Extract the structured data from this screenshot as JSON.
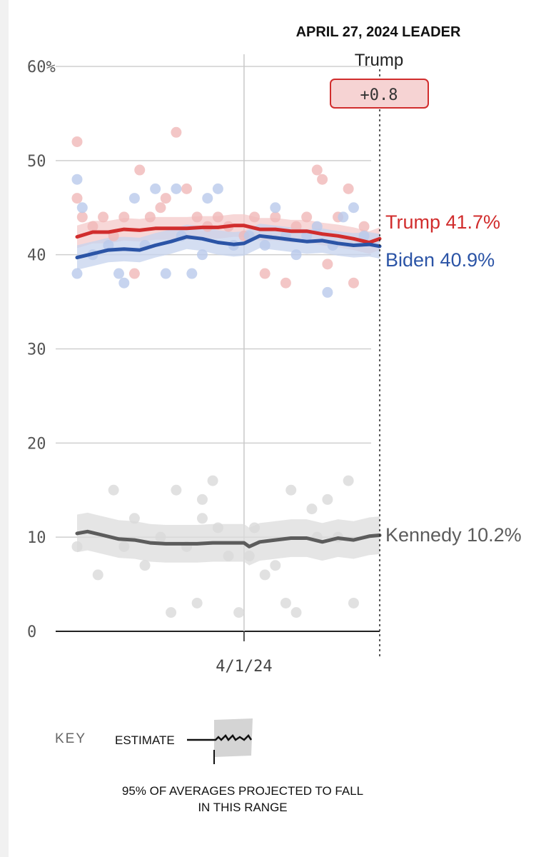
{
  "chart_data": {
    "type": "line",
    "header": "APRIL 27, 2024 LEADER",
    "leader": {
      "name": "Trump",
      "margin": "+0.8"
    },
    "y_ticks": [
      {
        "value": 60,
        "label": "60%"
      },
      {
        "value": 50,
        "label": "50"
      },
      {
        "value": 40,
        "label": "40"
      },
      {
        "value": 30,
        "label": "30"
      },
      {
        "value": 20,
        "label": "20"
      },
      {
        "value": 10,
        "label": "10"
      },
      {
        "value": 0,
        "label": "0"
      }
    ],
    "ylim": [
      0,
      60
    ],
    "x_ticks": [
      {
        "date": "2024-04-01",
        "label": "4/1/24"
      }
    ],
    "xlim": [
      "2024-02-29",
      "2024-04-27"
    ],
    "grid": true,
    "series": [
      {
        "name": "Trump",
        "end_label": "Trump 41.7%",
        "color": "#d12d2d",
        "x": [
          "2024-02-29",
          "2024-03-03",
          "2024-03-06",
          "2024-03-09",
          "2024-03-12",
          "2024-03-15",
          "2024-03-18",
          "2024-03-21",
          "2024-03-24",
          "2024-03-27",
          "2024-03-30",
          "2024-04-01",
          "2024-04-04",
          "2024-04-07",
          "2024-04-10",
          "2024-04-13",
          "2024-04-16",
          "2024-04-19",
          "2024-04-22",
          "2024-04-25",
          "2024-04-27"
        ],
        "y": [
          41.9,
          42.4,
          42.4,
          42.7,
          42.6,
          42.8,
          42.8,
          42.8,
          42.9,
          42.9,
          43.1,
          43.1,
          42.7,
          42.7,
          42.5,
          42.5,
          42.2,
          42.0,
          41.7,
          41.3,
          41.7
        ],
        "band": 1.2,
        "polls": [
          {
            "x": "2024-02-29",
            "y": 52
          },
          {
            "x": "2024-02-29",
            "y": 46
          },
          {
            "x": "2024-03-01",
            "y": 44
          },
          {
            "x": "2024-03-03",
            "y": 43
          },
          {
            "x": "2024-03-05",
            "y": 44
          },
          {
            "x": "2024-03-07",
            "y": 42
          },
          {
            "x": "2024-03-09",
            "y": 44
          },
          {
            "x": "2024-03-11",
            "y": 38
          },
          {
            "x": "2024-03-12",
            "y": 49
          },
          {
            "x": "2024-03-14",
            "y": 44
          },
          {
            "x": "2024-03-16",
            "y": 45
          },
          {
            "x": "2024-03-17",
            "y": 46
          },
          {
            "x": "2024-03-19",
            "y": 53
          },
          {
            "x": "2024-03-21",
            "y": 47
          },
          {
            "x": "2024-03-23",
            "y": 44
          },
          {
            "x": "2024-03-25",
            "y": 43
          },
          {
            "x": "2024-03-27",
            "y": 44
          },
          {
            "x": "2024-03-29",
            "y": 43
          },
          {
            "x": "2024-04-01",
            "y": 42
          },
          {
            "x": "2024-04-03",
            "y": 44
          },
          {
            "x": "2024-04-05",
            "y": 38
          },
          {
            "x": "2024-04-07",
            "y": 44
          },
          {
            "x": "2024-04-09",
            "y": 37
          },
          {
            "x": "2024-04-11",
            "y": 43
          },
          {
            "x": "2024-04-13",
            "y": 44
          },
          {
            "x": "2024-04-15",
            "y": 49
          },
          {
            "x": "2024-04-16",
            "y": 48
          },
          {
            "x": "2024-04-17",
            "y": 39
          },
          {
            "x": "2024-04-19",
            "y": 44
          },
          {
            "x": "2024-04-21",
            "y": 47
          },
          {
            "x": "2024-04-22",
            "y": 37
          },
          {
            "x": "2024-04-24",
            "y": 43
          }
        ]
      },
      {
        "name": "Biden",
        "end_label": "Biden 40.9%",
        "color": "#2b54a6",
        "x": [
          "2024-02-29",
          "2024-03-03",
          "2024-03-06",
          "2024-03-09",
          "2024-03-12",
          "2024-03-15",
          "2024-03-18",
          "2024-03-21",
          "2024-03-24",
          "2024-03-27",
          "2024-03-30",
          "2024-04-01",
          "2024-04-04",
          "2024-04-07",
          "2024-04-10",
          "2024-04-13",
          "2024-04-16",
          "2024-04-19",
          "2024-04-22",
          "2024-04-25",
          "2024-04-27"
        ],
        "y": [
          39.7,
          40.1,
          40.5,
          40.6,
          40.5,
          41.0,
          41.4,
          41.9,
          41.7,
          41.3,
          41.1,
          41.2,
          42.0,
          41.8,
          41.6,
          41.4,
          41.5,
          41.2,
          41.0,
          41.1,
          40.9
        ],
        "band": 1.3,
        "polls": [
          {
            "x": "2024-02-29",
            "y": 48
          },
          {
            "x": "2024-02-29",
            "y": 38
          },
          {
            "x": "2024-03-01",
            "y": 45
          },
          {
            "x": "2024-03-03",
            "y": 40
          },
          {
            "x": "2024-03-06",
            "y": 41
          },
          {
            "x": "2024-03-08",
            "y": 38
          },
          {
            "x": "2024-03-09",
            "y": 37
          },
          {
            "x": "2024-03-11",
            "y": 46
          },
          {
            "x": "2024-03-13",
            "y": 41
          },
          {
            "x": "2024-03-15",
            "y": 47
          },
          {
            "x": "2024-03-17",
            "y": 38
          },
          {
            "x": "2024-03-19",
            "y": 47
          },
          {
            "x": "2024-03-20",
            "y": 42
          },
          {
            "x": "2024-03-22",
            "y": 38
          },
          {
            "x": "2024-03-24",
            "y": 40
          },
          {
            "x": "2024-03-25",
            "y": 46
          },
          {
            "x": "2024-03-27",
            "y": 47
          },
          {
            "x": "2024-03-30",
            "y": 41
          },
          {
            "x": "2024-04-02",
            "y": 42
          },
          {
            "x": "2024-04-05",
            "y": 41
          },
          {
            "x": "2024-04-07",
            "y": 45
          },
          {
            "x": "2024-04-09",
            "y": 42
          },
          {
            "x": "2024-04-11",
            "y": 40
          },
          {
            "x": "2024-04-13",
            "y": 42
          },
          {
            "x": "2024-04-15",
            "y": 43
          },
          {
            "x": "2024-04-17",
            "y": 36
          },
          {
            "x": "2024-04-18",
            "y": 41
          },
          {
            "x": "2024-04-20",
            "y": 44
          },
          {
            "x": "2024-04-22",
            "y": 45
          },
          {
            "x": "2024-04-24",
            "y": 42
          }
        ]
      },
      {
        "name": "Kennedy",
        "end_label": "Kennedy 10.2%",
        "color": "#5c5c5c",
        "x": [
          "2024-02-29",
          "2024-03-02",
          "2024-03-05",
          "2024-03-08",
          "2024-03-11",
          "2024-03-14",
          "2024-03-17",
          "2024-03-20",
          "2024-03-23",
          "2024-03-26",
          "2024-03-29",
          "2024-04-01",
          "2024-04-02",
          "2024-04-04",
          "2024-04-07",
          "2024-04-10",
          "2024-04-13",
          "2024-04-16",
          "2024-04-19",
          "2024-04-22",
          "2024-04-25",
          "2024-04-27"
        ],
        "y": [
          10.4,
          10.6,
          10.2,
          9.8,
          9.7,
          9.4,
          9.3,
          9.3,
          9.3,
          9.4,
          9.4,
          9.4,
          9.0,
          9.5,
          9.7,
          9.9,
          9.9,
          9.5,
          9.9,
          9.7,
          10.1,
          10.2
        ],
        "band": 2.0,
        "polls": [
          {
            "x": "2024-02-29",
            "y": 9
          },
          {
            "x": "2024-03-04",
            "y": 6
          },
          {
            "x": "2024-03-07",
            "y": 15
          },
          {
            "x": "2024-03-09",
            "y": 9
          },
          {
            "x": "2024-03-11",
            "y": 12
          },
          {
            "x": "2024-03-13",
            "y": 7
          },
          {
            "x": "2024-03-16",
            "y": 10
          },
          {
            "x": "2024-03-18",
            "y": 2
          },
          {
            "x": "2024-03-19",
            "y": 15
          },
          {
            "x": "2024-03-21",
            "y": 9
          },
          {
            "x": "2024-03-23",
            "y": 3
          },
          {
            "x": "2024-03-24",
            "y": 14
          },
          {
            "x": "2024-03-24",
            "y": 12
          },
          {
            "x": "2024-03-26",
            "y": 16
          },
          {
            "x": "2024-03-27",
            "y": 11
          },
          {
            "x": "2024-03-29",
            "y": 8
          },
          {
            "x": "2024-03-31",
            "y": 2
          },
          {
            "x": "2024-04-02",
            "y": 8
          },
          {
            "x": "2024-04-03",
            "y": 11
          },
          {
            "x": "2024-04-05",
            "y": 6
          },
          {
            "x": "2024-04-07",
            "y": 7
          },
          {
            "x": "2024-04-09",
            "y": 3
          },
          {
            "x": "2024-04-10",
            "y": 15
          },
          {
            "x": "2024-04-11",
            "y": 2
          },
          {
            "x": "2024-04-14",
            "y": 13
          },
          {
            "x": "2024-04-15",
            "y": 10
          },
          {
            "x": "2024-04-17",
            "y": 14
          },
          {
            "x": "2024-04-19",
            "y": 10
          },
          {
            "x": "2024-04-21",
            "y": 16
          },
          {
            "x": "2024-04-22",
            "y": 3
          }
        ]
      }
    ]
  },
  "key": {
    "label": "KEY",
    "estimate_label": "ESTIMATE",
    "band_caption": "95% OF AVERAGES PROJECTED TO FALL IN THIS RANGE"
  }
}
